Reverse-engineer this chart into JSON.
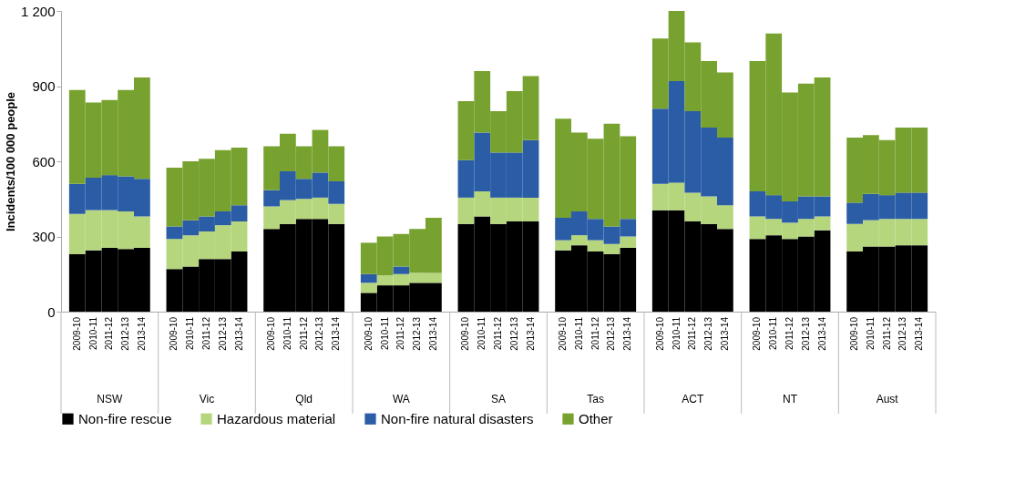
{
  "chart_data": {
    "type": "bar",
    "stacked": true,
    "ylabel": "Incidents/100 000 people",
    "categories": [
      "2009-10",
      "2010-11",
      "2011-12",
      "2012-13",
      "2013-14",
      "2009-10",
      "2010-11",
      "2011-12",
      "2012-13",
      "2013-14",
      "2009-10",
      "2010-11",
      "2011-12",
      "2012-13",
      "2013-14",
      "2009-10",
      "2010-11",
      "2011-12",
      "2012-13",
      "2013-14",
      "2009-10",
      "2010-11",
      "2011-12",
      "2012-13",
      "2013-14",
      "2009-10",
      "2010-11",
      "2011-12",
      "2012-13",
      "2013-14",
      "2009-10",
      "2010-11",
      "2011-12",
      "2012-13",
      "2013-14",
      "2009-10",
      "2010-11",
      "2011-12",
      "2012-13",
      "2013-14",
      "2009-10",
      "2010-11",
      "2011-12",
      "2012-13",
      "2013-14"
    ],
    "annotations": [
      "NSW",
      "Vic",
      "Qld",
      "WA",
      "SA",
      "Tas",
      "ACT",
      "NT",
      "Aust"
    ],
    "series": [
      {
        "name": "Non-fire rescue",
        "color": "#000000",
        "values": [
          230,
          245,
          255,
          250,
          255,
          170,
          180,
          210,
          210,
          240,
          330,
          350,
          370,
          370,
          350,
          75,
          105,
          105,
          115,
          115,
          350,
          380,
          350,
          360,
          360,
          245,
          265,
          240,
          230,
          255,
          405,
          405,
          360,
          350,
          330,
          290,
          305,
          290,
          300,
          325,
          240,
          260,
          260,
          265,
          265
        ]
      },
      {
        "name": "Hazardous material",
        "color": "#b5d67d",
        "values": [
          160,
          160,
          150,
          150,
          125,
          120,
          125,
          110,
          135,
          120,
          90,
          95,
          80,
          85,
          80,
          40,
          40,
          45,
          40,
          40,
          105,
          100,
          105,
          95,
          95,
          40,
          40,
          45,
          40,
          45,
          105,
          110,
          115,
          110,
          95,
          90,
          65,
          65,
          70,
          55,
          110,
          105,
          110,
          105,
          105
        ]
      },
      {
        "name": "Non-fire natural disasters",
        "color": "#2b5ca6",
        "values": [
          120,
          130,
          140,
          140,
          150,
          50,
          60,
          60,
          55,
          65,
          65,
          115,
          80,
          100,
          90,
          35,
          0,
          30,
          0,
          0,
          150,
          235,
          180,
          180,
          230,
          90,
          95,
          85,
          70,
          70,
          300,
          405,
          325,
          275,
          270,
          100,
          95,
          85,
          90,
          80,
          85,
          105,
          95,
          105,
          105
        ]
      },
      {
        "name": "Other",
        "color": "#78a22f",
        "values": [
          375,
          300,
          300,
          345,
          405,
          235,
          235,
          230,
          245,
          230,
          175,
          150,
          130,
          170,
          140,
          125,
          155,
          130,
          175,
          220,
          235,
          245,
          165,
          245,
          255,
          395,
          315,
          320,
          410,
          330,
          280,
          280,
          275,
          265,
          260,
          520,
          645,
          435,
          450,
          475,
          260,
          235,
          220,
          260,
          260
        ]
      }
    ],
    "ylim": [
      0,
      1200
    ],
    "yticks": [
      0,
      300,
      600,
      900,
      {
        "value": 1200,
        "label": "1 200"
      }
    ],
    "grid": false,
    "legend": "bottom"
  }
}
